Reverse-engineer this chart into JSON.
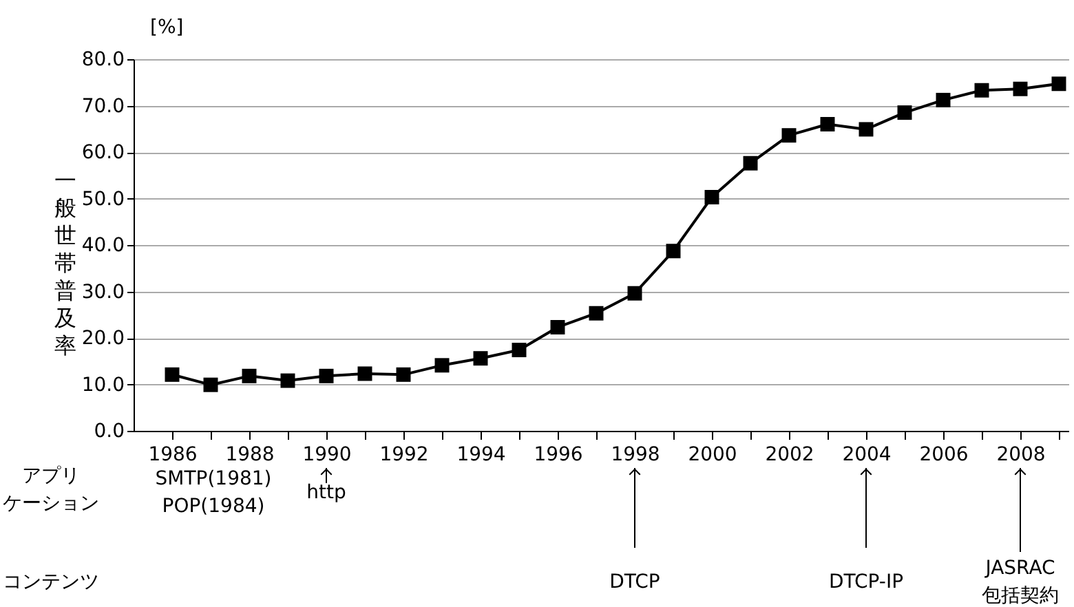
{
  "chart_data": {
    "type": "line",
    "ylabel": "一般世帯普及率",
    "x": [
      1986,
      1987,
      1988,
      1989,
      1990,
      1991,
      1992,
      1993,
      1994,
      1995,
      1996,
      1997,
      1998,
      1999,
      2000,
      2001,
      2002,
      2003,
      2004,
      2005,
      2006,
      2007,
      2008,
      2009
    ],
    "series": [
      {
        "color": "#000000",
        "values": [
          12.1,
          9.9,
          11.8,
          10.8,
          11.8,
          12.3,
          12.1,
          14.1,
          15.6,
          17.4,
          22.3,
          25.3,
          29.6,
          38.7,
          50.3,
          57.6,
          63.6,
          66.0,
          64.9,
          68.5,
          71.2,
          73.3,
          73.6,
          74.7
        ]
      }
    ],
    "xlim": [
      1985,
      2009.25
    ],
    "xticks": [
      1986,
      {
        "value": 1987,
        "label": null
      },
      1988,
      {
        "value": 1989,
        "label": null
      },
      1990,
      {
        "value": 1991,
        "label": null
      },
      1992,
      {
        "value": 1993,
        "label": null
      },
      1994,
      {
        "value": 1995,
        "label": null
      },
      1996,
      {
        "value": 1997,
        "label": null
      },
      1998,
      {
        "value": 1999,
        "label": null
      },
      2000,
      {
        "value": 2001,
        "label": null
      },
      2002,
      {
        "value": 2003,
        "label": null
      },
      2004,
      {
        "value": 2005,
        "label": null
      },
      2006,
      {
        "value": 2007,
        "label": null
      },
      2008,
      {
        "value": 2009,
        "label": null
      }
    ],
    "ylim": [
      0,
      80
    ],
    "yticks": [
      {
        "value": 0,
        "label": "0.0"
      },
      {
        "value": 10,
        "label": "10.0"
      },
      {
        "value": 20,
        "label": "20.0"
      },
      {
        "value": 30,
        "label": "30.0"
      },
      {
        "value": 40,
        "label": "40.0"
      },
      {
        "value": 50,
        "label": "50.0"
      },
      {
        "value": 60,
        "label": "60.0"
      },
      {
        "value": 70,
        "label": "70.0"
      },
      {
        "value": 80,
        "label": "80.0"
      }
    ],
    "grid": "y",
    "marker": "square",
    "line_style": "solid",
    "annotations": [
      "[%]",
      "アプリケーション",
      "SMTP(1981)\nPOP(1984)",
      "コンテンツ",
      "http",
      "DTCP",
      "DTCP-IP",
      "JASRAC\n包括契約"
    ]
  }
}
